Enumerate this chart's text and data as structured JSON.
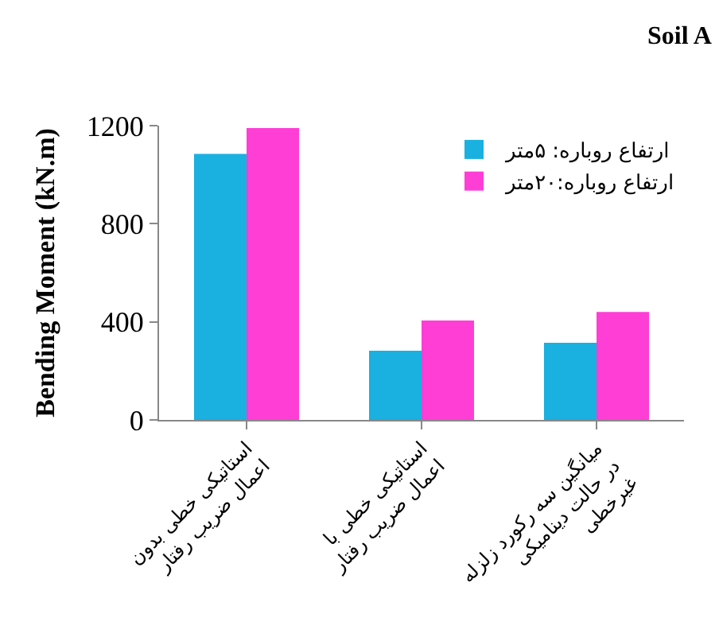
{
  "chart_data": {
    "type": "bar",
    "title": "Soil A",
    "ylabel": "Bending Moment (kN.m)",
    "categories": [
      "استاتیکی خطی بدون\nاعمال ضریب رفتار",
      "استاتیکی خطی با\nاعمال ضریب رفتار",
      "میانگین سه رکورد زلزله\nدر حالت دینامیکی\nغیرخطی"
    ],
    "series": [
      {
        "name": "ارتفاع روباره: ۵متر",
        "color": "#1ab0e0",
        "values": [
          1085,
          282,
          315
        ]
      },
      {
        "name": "ارتفاع روباره:۲۰متر",
        "color": "#ff3ed6",
        "values": [
          1190,
          405,
          440
        ]
      }
    ],
    "ylim": [
      0,
      1200
    ],
    "yticks": [
      0,
      400,
      800,
      1200
    ],
    "legend": "top right"
  }
}
